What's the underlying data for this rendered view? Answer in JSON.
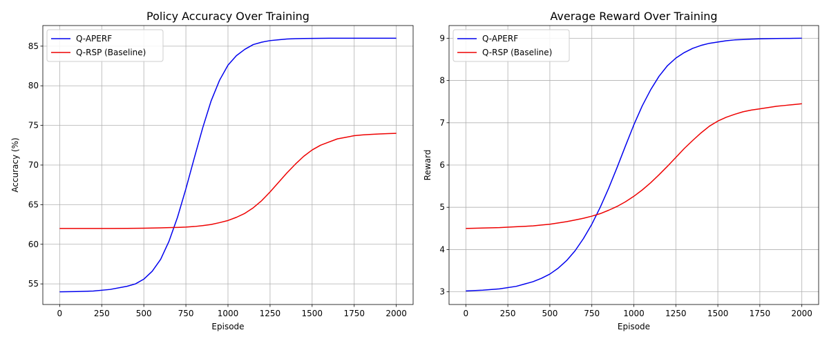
{
  "chart_data": [
    {
      "type": "line",
      "title": "Policy Accuracy Over Training",
      "xlabel": "Episode",
      "ylabel": "Accuracy (%)",
      "xlim": [
        -100,
        2100
      ],
      "ylim": [
        52.4,
        87.6
      ],
      "xticks": [
        0,
        250,
        500,
        750,
        1000,
        1250,
        1500,
        1750,
        2000
      ],
      "yticks": [
        55,
        60,
        65,
        70,
        75,
        80,
        85
      ],
      "grid": true,
      "legend_position": "upper-left",
      "x": [
        0,
        100,
        200,
        300,
        400,
        450,
        500,
        550,
        600,
        650,
        700,
        750,
        800,
        850,
        900,
        950,
        1000,
        1050,
        1100,
        1150,
        1200,
        1250,
        1300,
        1350,
        1400,
        1450,
        1500,
        1550,
        1600,
        1650,
        1700,
        1750,
        1800,
        1850,
        1900,
        1950,
        2000
      ],
      "series": [
        {
          "name": "Q-APERF",
          "color": "#0000ee",
          "values": [
            54.0,
            54.03,
            54.1,
            54.3,
            54.7,
            55.0,
            55.6,
            56.6,
            58.1,
            60.4,
            63.4,
            67.0,
            70.9,
            74.7,
            78.1,
            80.7,
            82.6,
            83.8,
            84.6,
            85.2,
            85.5,
            85.7,
            85.8,
            85.9,
            85.95,
            85.97,
            85.98,
            85.99,
            86.0,
            86.0,
            86.0,
            86.0,
            86.0,
            86.0,
            86.0,
            86.0,
            86.0
          ]
        },
        {
          "name": "Q-RSP (Baseline)",
          "color": "#ee0000",
          "values": [
            62.0,
            62.0,
            62.0,
            62.0,
            62.01,
            62.02,
            62.03,
            62.05,
            62.07,
            62.1,
            62.13,
            62.17,
            62.24,
            62.35,
            62.5,
            62.73,
            63.0,
            63.4,
            63.9,
            64.6,
            65.5,
            66.6,
            67.8,
            69.0,
            70.1,
            71.1,
            71.9,
            72.5,
            72.9,
            73.3,
            73.5,
            73.7,
            73.8,
            73.87,
            73.92,
            73.96,
            74.0
          ]
        }
      ]
    },
    {
      "type": "line",
      "title": "Average Reward Over Training",
      "xlabel": "Episode",
      "ylabel": "Reward",
      "xlim": [
        -100,
        2100
      ],
      "ylim": [
        2.7,
        9.3
      ],
      "xticks": [
        0,
        250,
        500,
        750,
        1000,
        1250,
        1500,
        1750,
        2000
      ],
      "yticks": [
        3,
        4,
        5,
        6,
        7,
        8,
        9
      ],
      "grid": true,
      "legend_position": "upper-left",
      "x": [
        0,
        100,
        200,
        300,
        400,
        450,
        500,
        550,
        600,
        650,
        700,
        750,
        800,
        850,
        900,
        950,
        1000,
        1050,
        1100,
        1150,
        1200,
        1250,
        1300,
        1350,
        1400,
        1450,
        1500,
        1550,
        1600,
        1650,
        1700,
        1750,
        1800,
        1850,
        1900,
        1950,
        2000
      ],
      "series": [
        {
          "name": "Q-APERF",
          "color": "#0000ee",
          "values": [
            3.02,
            3.04,
            3.07,
            3.13,
            3.24,
            3.32,
            3.42,
            3.56,
            3.74,
            3.97,
            4.26,
            4.6,
            5.0,
            5.45,
            5.94,
            6.45,
            6.95,
            7.4,
            7.78,
            8.1,
            8.35,
            8.53,
            8.66,
            8.76,
            8.83,
            8.88,
            8.91,
            8.94,
            8.96,
            8.97,
            8.98,
            8.985,
            8.99,
            8.993,
            8.995,
            8.997,
            9.0
          ]
        },
        {
          "name": "Q-RSP (Baseline)",
          "color": "#ee0000",
          "values": [
            4.5,
            4.51,
            4.52,
            4.54,
            4.56,
            4.58,
            4.6,
            4.63,
            4.66,
            4.7,
            4.74,
            4.79,
            4.85,
            4.93,
            5.02,
            5.13,
            5.26,
            5.41,
            5.58,
            5.77,
            5.97,
            6.18,
            6.39,
            6.58,
            6.76,
            6.92,
            7.04,
            7.13,
            7.2,
            7.26,
            7.3,
            7.33,
            7.36,
            7.39,
            7.41,
            7.43,
            7.45
          ]
        }
      ]
    }
  ]
}
